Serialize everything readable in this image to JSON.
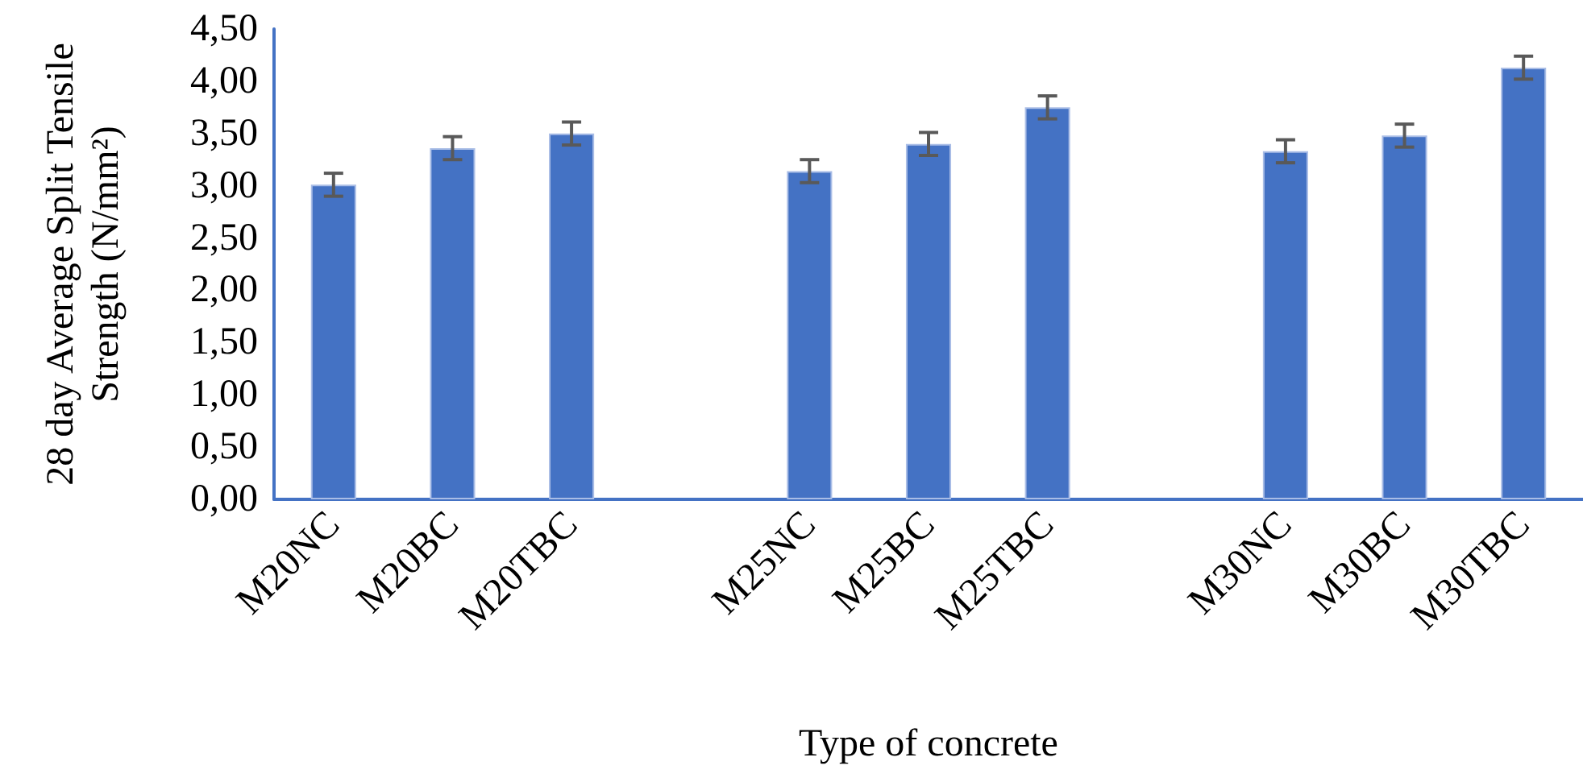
{
  "chart_data": {
    "type": "bar",
    "xlabel": "Type of concrete",
    "ylabel": "28 day Average Split Tensile Strength (N/mm²)",
    "categories": [
      "M20NC",
      "M20BC",
      "M20TBC",
      null,
      "M25NC",
      "M25BC",
      "M25TBC",
      null,
      "M30NC",
      "M30BC",
      "M30TBC"
    ],
    "values": [
      3.01,
      3.36,
      3.5,
      null,
      3.14,
      3.4,
      3.75,
      null,
      3.33,
      3.48,
      4.13
    ],
    "errors": [
      0.11,
      0.11,
      0.11,
      null,
      0.11,
      0.11,
      0.11,
      null,
      0.11,
      0.11,
      0.11
    ],
    "color": "#4472c4",
    "ylim": [
      0,
      4.5
    ],
    "yticks": [
      {
        "value": 0,
        "label": "0,00"
      },
      {
        "value": 0.5,
        "label": "0,50"
      },
      {
        "value": 1,
        "label": "1,00"
      },
      {
        "value": 1.5,
        "label": "1,50"
      },
      {
        "value": 2,
        "label": "2,00"
      },
      {
        "value": 2.5,
        "label": "2,50"
      },
      {
        "value": 3,
        "label": "3,00"
      },
      {
        "value": 3.5,
        "label": "3,50"
      },
      {
        "value": 4,
        "label": "4,00"
      },
      {
        "value": 4.5,
        "label": "4,50"
      }
    ],
    "grid": false
  }
}
